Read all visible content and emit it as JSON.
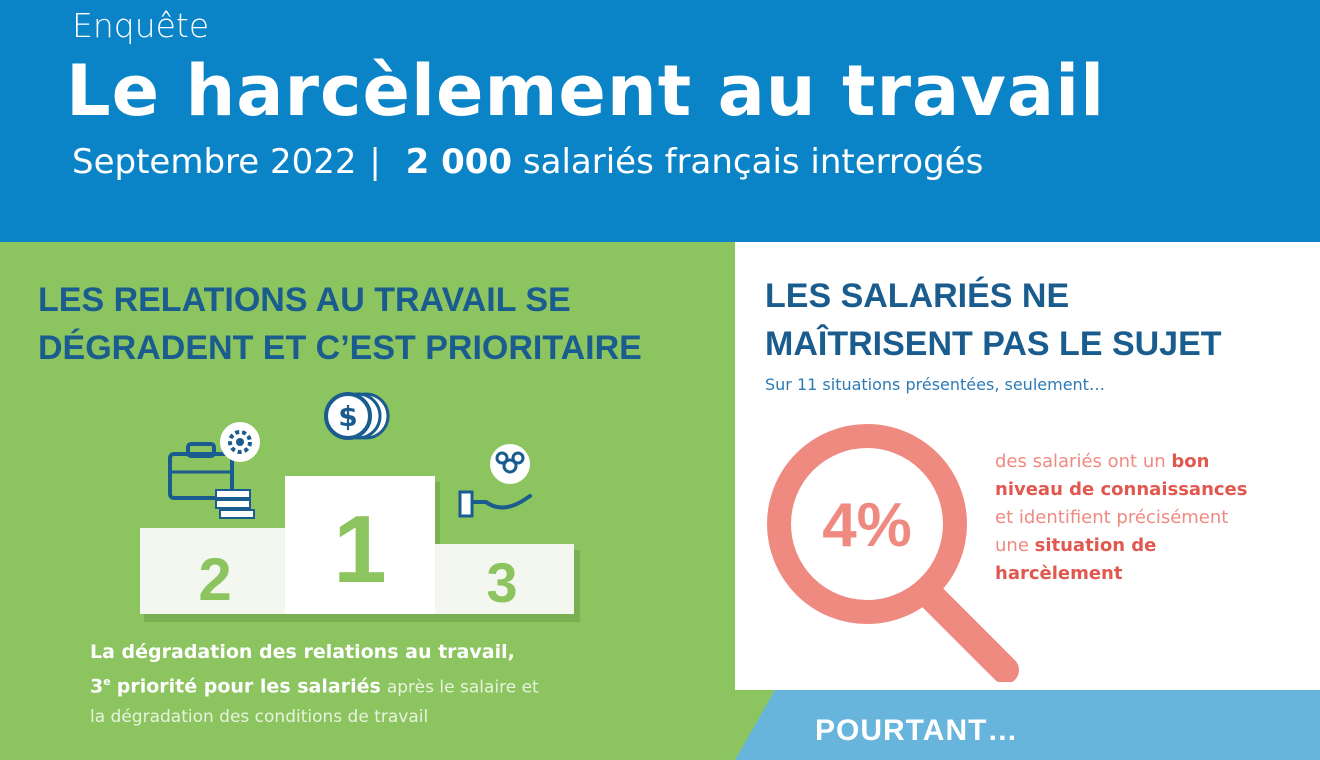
{
  "header": {
    "kicker": "Enquête",
    "title": "Le harcèlement au travail",
    "subtitle_date": "Septembre 2022",
    "subtitle_sep": "|",
    "subtitle_count": "2 000",
    "subtitle_rest": "salariés français interrogés"
  },
  "left_panel": {
    "heading_line1": "LES RELATIONS AU TRAVAIL SE",
    "heading_line2": "DÉGRADENT ET C’EST PRIORITAIRE",
    "podium": {
      "first": "1",
      "second": "2",
      "third": "3",
      "icons": [
        "briefcase-gear-icon",
        "coins-dollar-icon",
        "hand-people-icon"
      ]
    },
    "caption_bold1": "La dégradation des relations au travail,",
    "caption_bold2_num": "3",
    "caption_bold2_sup": "e",
    "caption_bold2_rest": "priorité pour les salariés",
    "caption_light1": "après le salaire et",
    "caption_light2": "la dégradation des conditions de travail"
  },
  "right_panel": {
    "heading_line1": "LES SALARIÉS NE",
    "heading_line2": "MAÎTRISENT PAS LE SUJET",
    "subheading": "Sur 11 situations présentées, seulement…",
    "stat_value": "4%",
    "stat_t1": "des salariés ont un",
    "stat_b1": "bon",
    "stat_b2": "niveau de connaissances",
    "stat_t2": "et identifient précisément",
    "stat_t3": "une",
    "stat_b3": "situation de",
    "stat_b4": "harcèlement"
  },
  "bottom_band": {
    "label": "POURTANT…"
  },
  "colors": {
    "header_blue": "#0b84c7",
    "green": "#8cc460",
    "navy": "#1a5c8e",
    "salmon": "#ef8a80",
    "light_blue": "#67b4dd"
  }
}
